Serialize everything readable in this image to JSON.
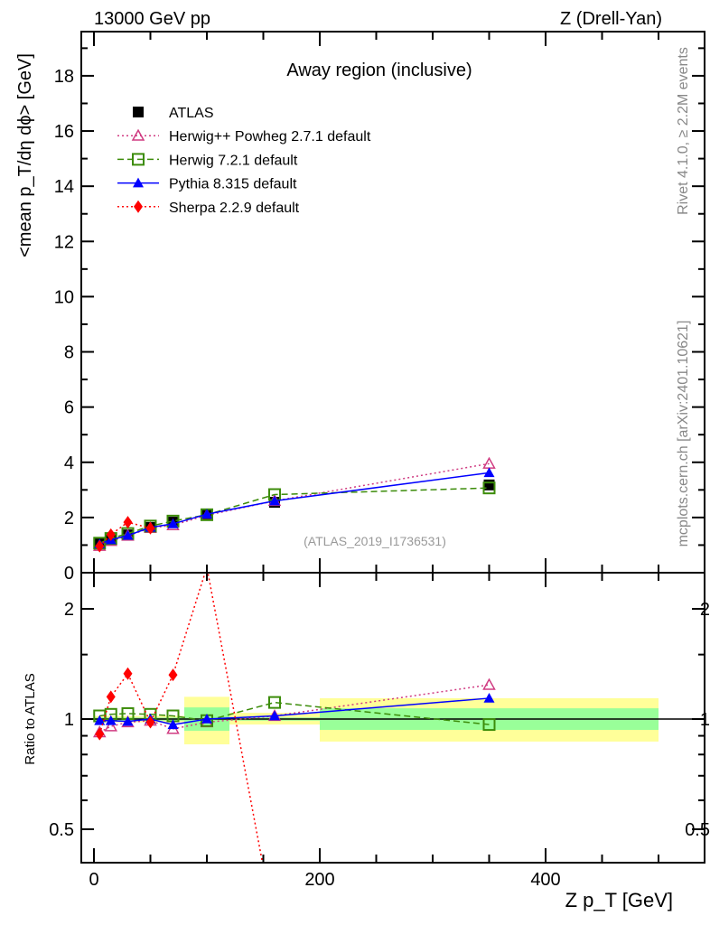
{
  "chart_data": [
    {
      "type": "line",
      "title": "Away region (inclusive)",
      "header_left": "13000 GeV pp",
      "header_right": "Z (Drell-Yan)",
      "ylabel": "<mean p_T/dη dϕ> [GeV]",
      "xlabel": "Z p_T [GeV]",
      "xlim": [
        -11,
        541
      ],
      "ylim": [
        0,
        19.6
      ],
      "yticks": [
        "0",
        "2",
        "4",
        "6",
        "8",
        "10",
        "12",
        "14",
        "16",
        "18"
      ],
      "xticks": [
        "0",
        "200",
        "400"
      ],
      "watermark": "(ATLAS_2019_I1736531)",
      "side_text_top": "Rivet 4.1.0, ≥ 2.2M events",
      "side_text_bottom": "mcplots.cern.ch [arXiv:2401.10621]",
      "legend_position": "top-left",
      "x": [
        5,
        15,
        30,
        50,
        70,
        100,
        160,
        350
      ],
      "series": [
        {
          "name": "ATLAS",
          "color": "#000000",
          "marker": "square",
          "values": [
            1.05,
            1.2,
            1.37,
            1.64,
            1.83,
            2.12,
            2.55,
            3.18
          ]
        },
        {
          "name": "Herwig++ Powheg 2.7.1 default",
          "color": "#d03c82",
          "marker": "triangle-open",
          "dash": "dotted",
          "values": [
            0.97,
            1.15,
            1.34,
            1.62,
            1.72,
            2.08,
            2.6,
            3.95
          ]
        },
        {
          "name": "Herwig 7.2.1 default",
          "color": "#3c8c0a",
          "marker": "square-open",
          "dash": "dashed",
          "values": [
            1.07,
            1.24,
            1.42,
            1.69,
            1.87,
            2.1,
            2.83,
            3.07
          ]
        },
        {
          "name": "Pythia 8.315 default",
          "color": "#0000ff",
          "marker": "triangle",
          "dash": "solid",
          "values": [
            1.04,
            1.19,
            1.35,
            1.64,
            1.77,
            2.12,
            2.6,
            3.62
          ]
        },
        {
          "name": "Sherpa 2.2.9 default",
          "color": "#ff0000",
          "marker": "diamond",
          "dash": "dotted",
          "values": [
            0.96,
            1.38,
            1.83,
            1.61,
            null,
            null,
            null,
            null
          ]
        }
      ]
    },
    {
      "type": "line",
      "ylabel": "Ratio to ATLAS",
      "xlabel": "Z p_T [GeV]",
      "yscale": "log",
      "ylim": [
        0.405,
        2.51
      ],
      "yticks": [
        "0.5",
        "1",
        "2"
      ],
      "bands": [
        {
          "x": [
            0,
            10
          ],
          "stat": [
            0.99,
            1.01
          ],
          "total": [
            0.98,
            1.02
          ]
        },
        {
          "x": [
            10,
            20
          ],
          "stat": [
            0.99,
            1.01
          ],
          "total": [
            0.98,
            1.02
          ]
        },
        {
          "x": [
            20,
            40
          ],
          "stat": [
            0.99,
            1.01
          ],
          "total": [
            0.98,
            1.02
          ]
        },
        {
          "x": [
            40,
            60
          ],
          "stat": [
            0.99,
            1.01
          ],
          "total": [
            0.98,
            1.02
          ]
        },
        {
          "x": [
            60,
            80
          ],
          "stat": [
            0.99,
            1.01
          ],
          "total": [
            0.98,
            1.02
          ]
        },
        {
          "x": [
            80,
            120
          ],
          "stat": [
            0.929,
            1.076
          ],
          "total": [
            0.853,
            1.15
          ]
        },
        {
          "x": [
            120,
            200
          ],
          "stat": [
            0.99,
            1.01
          ],
          "total": [
            0.966,
            1.04
          ]
        },
        {
          "x": [
            200,
            500
          ],
          "stat": [
            0.934,
            1.07
          ],
          "total": [
            0.868,
            1.14
          ]
        }
      ],
      "x": [
        5,
        15,
        30,
        50,
        70,
        100,
        160,
        350
      ],
      "series": [
        {
          "name": "Herwig++ Powheg 2.7.1 default",
          "values": [
            0.92,
            0.955,
            0.98,
            0.99,
            0.94,
            0.98,
            1.02,
            1.24
          ]
        },
        {
          "name": "Herwig 7.2.1 default",
          "values": [
            1.02,
            1.03,
            1.035,
            1.03,
            1.02,
            0.99,
            1.11,
            0.966
          ]
        },
        {
          "name": "Pythia 8.315 default",
          "values": [
            0.99,
            0.99,
            0.985,
            1.0,
            0.965,
            1.0,
            1.02,
            1.14
          ]
        },
        {
          "name": "Sherpa 2.2.9 default",
          "values": [
            0.91,
            1.15,
            1.33,
            0.98,
            1.32,
            2.6,
            0.27,
            null
          ]
        }
      ]
    }
  ]
}
